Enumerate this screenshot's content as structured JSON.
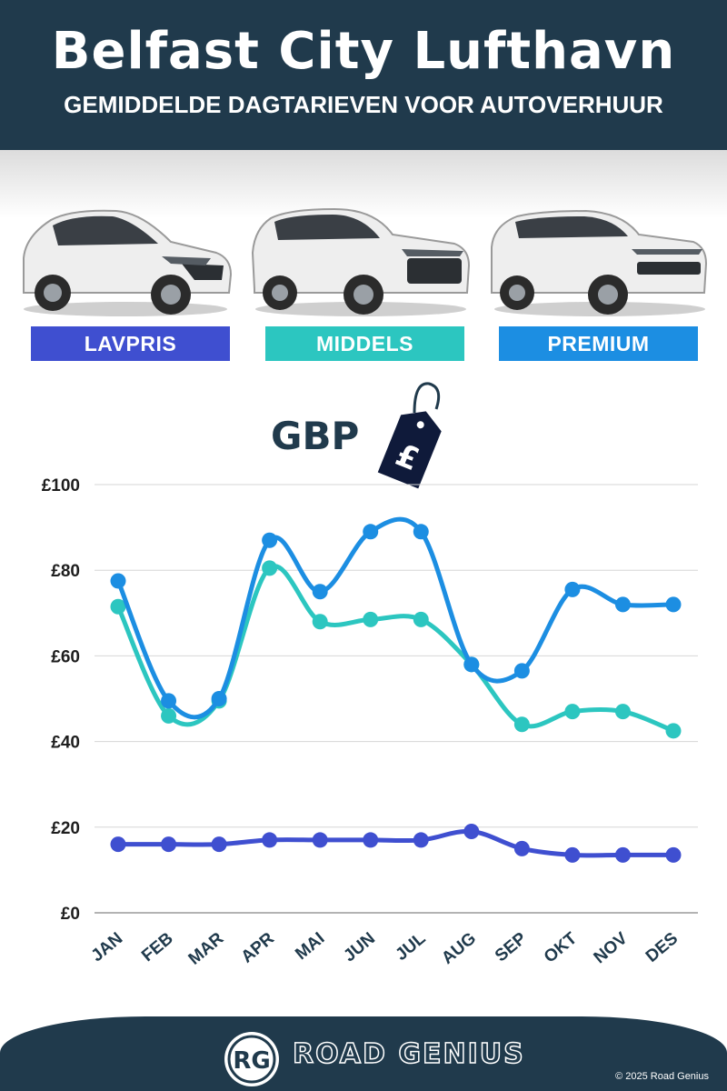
{
  "header": {
    "title": "Belfast City Lufthavn",
    "subtitle": "GEMIDDELDE DAGTARIEVEN VOOR AUTOVERHUUR"
  },
  "tiers": [
    {
      "label": "LAVPRIS",
      "color": "#3f4fd0",
      "car_icon": "hatchback-car-icon"
    },
    {
      "label": "MIDDELS",
      "color": "#2cc6c0",
      "car_icon": "suv-car-icon"
    },
    {
      "label": "PREMIUM",
      "color": "#1c8ee2",
      "car_icon": "luxury-suv-car-icon"
    }
  ],
  "currency_badge": {
    "label": "GBP",
    "icon": "pound-price-tag-icon",
    "symbol": "£"
  },
  "chart_data": {
    "type": "line",
    "categories": [
      "JAN",
      "FEB",
      "MAR",
      "APR",
      "MAI",
      "JUN",
      "JUL",
      "AUG",
      "SEP",
      "OKT",
      "NOV",
      "DES"
    ],
    "y_ticks": [
      "£0",
      "£20",
      "£40",
      "£60",
      "£80",
      "£100"
    ],
    "ylim": [
      0,
      100
    ],
    "grid": true,
    "series": [
      {
        "name": "LAVPRIS",
        "color": "#3f4fd0",
        "values": [
          16,
          16,
          16,
          17,
          17,
          17,
          17,
          19,
          15,
          13.5,
          13.5,
          13.5
        ]
      },
      {
        "name": "MIDDELS",
        "color": "#2cc6c0",
        "values": [
          71.5,
          46,
          49.5,
          80.5,
          68,
          68.5,
          68.5,
          58,
          44,
          47,
          47,
          42.5
        ]
      },
      {
        "name": "PREMIUM",
        "color": "#1c8ee2",
        "values": [
          77.5,
          49.5,
          50,
          87,
          75,
          89,
          89,
          58,
          56.5,
          75.5,
          72,
          72
        ]
      }
    ]
  },
  "footer": {
    "logo_text": "RG",
    "brand": "ROAD GENIUS",
    "copyright": "© 2025 Road Genius"
  }
}
